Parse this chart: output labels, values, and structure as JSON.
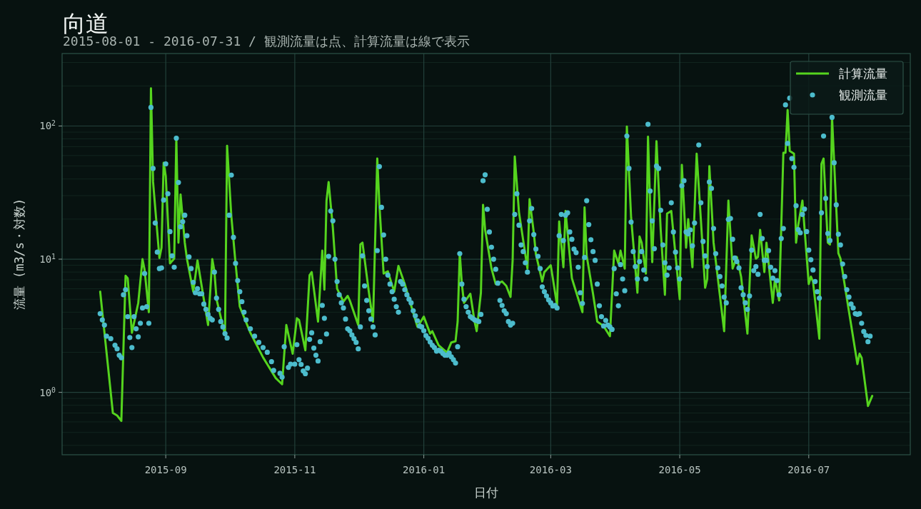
{
  "chart_data": {
    "type": "line",
    "title": "向道",
    "subtitle": "2015-08-01 - 2016-07-31 / 観測流量は点、計算流量は線で表示",
    "xlabel": "日付",
    "ylabel": "流量 (m3/s・対数)",
    "log": "y",
    "grid": true,
    "legend": "top right",
    "xlim": [
      "2015-07-14",
      "2016-08-18"
    ],
    "ylim": [
      0.34,
      350
    ],
    "xticks": [
      "2015-09",
      "2015-11",
      "2016-01",
      "2016-03",
      "2016-05",
      "2016-07"
    ],
    "yticks": [
      {
        "value": 1,
        "label": "10$^{0}$"
      },
      {
        "value": 10,
        "label": "10$^{1}$"
      },
      {
        "value": 100,
        "label": "10$^{2}$"
      }
    ],
    "series": [
      {
        "name": "計算流量",
        "type": "line",
        "color": "#55d41e",
        "line_style": "solid",
        "marker": "none",
        "x": [
          "2015-08-01",
          "2015-08-07",
          "2015-08-09",
          "2015-08-11",
          "2015-08-13",
          "2015-08-14",
          "2015-08-16",
          "2015-08-19",
          "2015-08-21",
          "2015-08-22",
          "2015-08-24",
          "2015-08-25",
          "2015-08-26",
          "2015-08-28",
          "2015-08-29",
          "2015-08-30",
          "2015-08-31",
          "2015-09-01",
          "2015-09-03",
          "2015-09-05",
          "2015-09-06",
          "2015-09-07",
          "2015-09-08",
          "2015-09-10",
          "2015-09-11",
          "2015-09-14",
          "2015-09-16",
          "2015-09-19",
          "2015-09-21",
          "2015-09-23",
          "2015-09-24",
          "2015-09-25",
          "2015-09-29",
          "2015-09-30",
          "2015-10-02",
          "2015-10-04",
          "2015-10-06",
          "2015-10-11",
          "2015-10-17",
          "2015-10-23",
          "2015-10-26",
          "2015-10-28",
          "2015-10-31",
          "2015-11-02",
          "2015-11-03",
          "2015-11-06",
          "2015-11-08",
          "2015-11-09",
          "2015-11-12",
          "2015-11-14",
          "2015-11-15",
          "2015-11-16",
          "2015-11-17",
          "2015-11-19",
          "2015-11-21",
          "2015-11-24",
          "2015-11-26",
          "2015-11-27",
          "2015-12-01",
          "2015-12-02",
          "2015-12-03",
          "2015-12-06",
          "2015-12-08",
          "2015-12-10",
          "2015-12-11",
          "2015-12-13",
          "2015-12-15",
          "2015-12-16",
          "2015-12-18",
          "2015-12-20",
          "2015-12-23",
          "2015-12-29",
          "2016-01-01",
          "2016-01-04",
          "2016-01-05",
          "2016-01-08",
          "2016-01-12",
          "2016-01-14",
          "2016-01-16",
          "2016-01-17",
          "2016-01-18",
          "2016-01-19",
          "2016-01-20",
          "2016-01-23",
          "2016-01-25",
          "2016-01-26",
          "2016-01-28",
          "2016-01-29",
          "2016-01-30",
          "2016-02-02",
          "2016-02-04",
          "2016-02-07",
          "2016-02-09",
          "2016-02-11",
          "2016-02-12",
          "2016-02-13",
          "2016-02-15",
          "2016-02-19",
          "2016-02-20",
          "2016-02-22",
          "2016-02-23",
          "2016-02-26",
          "2016-02-27",
          "2016-03-01",
          "2016-03-02",
          "2016-03-04",
          "2016-03-05",
          "2016-03-07",
          "2016-03-08",
          "2016-03-11",
          "2016-03-12",
          "2016-03-16",
          "2016-03-17",
          "2016-03-18",
          "2016-03-21",
          "2016-03-23",
          "2016-03-26",
          "2016-03-29",
          "2016-03-31",
          "2016-04-02",
          "2016-04-03",
          "2016-04-05",
          "2016-04-06",
          "2016-04-08",
          "2016-04-11",
          "2016-04-12",
          "2016-04-13",
          "2016-04-15",
          "2016-04-16",
          "2016-04-17",
          "2016-04-18",
          "2016-04-20",
          "2016-04-22",
          "2016-04-24",
          "2016-04-25",
          "2016-04-27",
          "2016-05-01",
          "2016-05-02",
          "2016-05-04",
          "2016-05-05",
          "2016-05-07",
          "2016-05-09",
          "2016-05-11",
          "2016-05-13",
          "2016-05-14",
          "2016-05-15",
          "2016-05-17",
          "2016-05-22",
          "2016-05-24",
          "2016-05-26",
          "2016-05-28",
          "2016-05-30",
          "2016-06-02",
          "2016-06-04",
          "2016-06-06",
          "2016-06-07",
          "2016-06-08",
          "2016-06-10",
          "2016-06-11",
          "2016-06-14",
          "2016-06-15",
          "2016-06-17",
          "2016-06-19",
          "2016-06-20",
          "2016-06-21",
          "2016-06-22",
          "2016-06-24",
          "2016-06-25",
          "2016-06-26",
          "2016-06-28",
          "2016-07-01",
          "2016-07-02",
          "2016-07-03",
          "2016-07-06",
          "2016-07-07",
          "2016-07-08",
          "2016-07-10",
          "2016-07-11",
          "2016-07-12",
          "2016-07-15",
          "2016-07-16",
          "2016-07-24",
          "2016-07-25",
          "2016-07-26",
          "2016-07-29",
          "2016-07-31"
        ],
        "values": [
          5.7,
          0.7,
          0.67,
          0.61,
          7.5,
          7.2,
          2.8,
          4.7,
          10,
          8.3,
          4.0,
          192,
          38,
          15.8,
          10.2,
          12.2,
          53,
          42,
          9.3,
          10.1,
          81,
          13.3,
          30.6,
          13.3,
          10.1,
          5.7,
          9.8,
          5.0,
          3.2,
          10,
          8.1,
          5.0,
          2.7,
          71,
          21,
          9.3,
          4.4,
          2.8,
          1.83,
          1.28,
          1.15,
          3.2,
          1.95,
          3.6,
          3.5,
          2.07,
          7.6,
          8.0,
          3.4,
          11.6,
          5.9,
          27.5,
          38,
          17.2,
          6.0,
          4.8,
          5.3,
          4.9,
          3.2,
          12.9,
          13.3,
          5.7,
          3.4,
          57,
          25.6,
          7.8,
          8.1,
          7.2,
          5.7,
          8.9,
          6.5,
          3.1,
          3.7,
          2.76,
          2.88,
          2.26,
          1.99,
          2.37,
          2.42,
          3.4,
          11.1,
          6.5,
          4.7,
          5.5,
          3.4,
          2.88,
          5.6,
          25.6,
          16.6,
          8.5,
          6.5,
          6.8,
          6.3,
          5.2,
          9.8,
          59,
          22.5,
          8.5,
          28.2,
          15.8,
          10.9,
          6.8,
          8.0,
          9.0,
          7.2,
          4.5,
          19.2,
          8.7,
          23,
          7.2,
          6.4,
          4.0,
          24.5,
          10.6,
          5.5,
          3.4,
          3.15,
          2.64,
          11.6,
          9.3,
          11.6,
          8.5,
          99,
          20.6,
          5.6,
          14.8,
          13.3,
          7.8,
          83,
          25.6,
          9.5,
          77,
          16.6,
          5.4,
          22,
          23,
          5.0,
          51,
          12.2,
          20,
          8.7,
          62,
          19.7,
          6.1,
          7.1,
          50,
          13.3,
          2.88,
          27.5,
          8.5,
          10.4,
          7.4,
          2.76,
          15.1,
          10.1,
          10.4,
          16.6,
          8.0,
          13.3,
          4.7,
          7.1,
          4.9,
          63,
          63,
          132,
          65,
          62,
          13.3,
          18.0,
          27.5,
          6.5,
          7.4,
          6.8,
          2.53,
          52,
          57,
          13.3,
          12.9,
          117,
          11.1,
          10.1,
          1.63,
          1.95,
          1.82,
          0.79,
          0.94
        ]
      },
      {
        "name": "観測流量",
        "type": "scatter",
        "color": "#4cbccc",
        "marker": "circle",
        "x": [
          "2015-08-01",
          "2015-08-02",
          "2015-08-03",
          "2015-08-04",
          "2015-08-06",
          "2015-08-08",
          "2015-08-09",
          "2015-08-10",
          "2015-08-11",
          "2015-08-12",
          "2015-08-13",
          "2015-08-14",
          "2015-08-15",
          "2015-08-16",
          "2015-08-17",
          "2015-08-18",
          "2015-08-19",
          "2015-08-20",
          "2015-08-21",
          "2015-08-22",
          "2015-08-23",
          "2015-08-24",
          "2015-08-25",
          "2015-08-26",
          "2015-08-27",
          "2015-08-28",
          "2015-08-29",
          "2015-08-30",
          "2015-08-31",
          "2015-09-01",
          "2015-09-02",
          "2015-09-03",
          "2015-09-04",
          "2015-09-05",
          "2015-09-06",
          "2015-09-07",
          "2015-09-08",
          "2015-09-09",
          "2015-09-10",
          "2015-09-11",
          "2015-09-12",
          "2015-09-13",
          "2015-09-14",
          "2015-09-15",
          "2015-09-16",
          "2015-09-17",
          "2015-09-18",
          "2015-09-19",
          "2015-09-20",
          "2015-09-21",
          "2015-09-22",
          "2015-09-23",
          "2015-09-24",
          "2015-09-25",
          "2015-09-26",
          "2015-09-27",
          "2015-09-28",
          "2015-09-29",
          "2015-09-30",
          "2015-10-01",
          "2015-10-02",
          "2015-10-03",
          "2015-10-04",
          "2015-10-05",
          "2015-10-06",
          "2015-10-07",
          "2015-10-08",
          "2015-10-09",
          "2015-10-11",
          "2015-10-13",
          "2015-10-15",
          "2015-10-17",
          "2015-10-19",
          "2015-10-21",
          "2015-10-22",
          "2015-10-25",
          "2015-10-26",
          "2015-10-27",
          "2015-10-29",
          "2015-10-30",
          "2015-11-01",
          "2015-11-02",
          "2015-11-03",
          "2015-11-04",
          "2015-11-05",
          "2015-11-06",
          "2015-11-07",
          "2015-11-08",
          "2015-11-09",
          "2015-11-10",
          "2015-11-11",
          "2015-11-12",
          "2015-11-13",
          "2015-11-14",
          "2015-11-15",
          "2015-11-16",
          "2015-11-17",
          "2015-11-18",
          "2015-11-19",
          "2015-11-20",
          "2015-11-21",
          "2015-11-22",
          "2015-11-23",
          "2015-11-24",
          "2015-11-25",
          "2015-11-26",
          "2015-11-27",
          "2015-11-28",
          "2015-11-29",
          "2015-11-30",
          "2015-12-01",
          "2015-12-02",
          "2015-12-03",
          "2015-12-04",
          "2015-12-05",
          "2015-12-06",
          "2015-12-07",
          "2015-12-08",
          "2015-12-09",
          "2015-12-10",
          "2015-12-11",
          "2015-12-12",
          "2015-12-13",
          "2015-12-14",
          "2015-12-15",
          "2015-12-16",
          "2015-12-17",
          "2015-12-18",
          "2015-12-19",
          "2015-12-20",
          "2015-12-21",
          "2015-12-22",
          "2015-12-23",
          "2015-12-24",
          "2015-12-25",
          "2015-12-26",
          "2015-12-27",
          "2015-12-28",
          "2015-12-29",
          "2015-12-30",
          "2015-12-31",
          "2016-01-01",
          "2016-01-02",
          "2016-01-03",
          "2016-01-04",
          "2016-01-05",
          "2016-01-06",
          "2016-01-07",
          "2016-01-08",
          "2016-01-09",
          "2016-01-10",
          "2016-01-11",
          "2016-01-12",
          "2016-01-13",
          "2016-01-14",
          "2016-01-15",
          "2016-01-16",
          "2016-01-17",
          "2016-01-18",
          "2016-01-19",
          "2016-01-20",
          "2016-01-21",
          "2016-01-22",
          "2016-01-23",
          "2016-01-24",
          "2016-01-25",
          "2016-01-26",
          "2016-01-27",
          "2016-01-28",
          "2016-01-29",
          "2016-01-30",
          "2016-01-31",
          "2016-02-01",
          "2016-02-02",
          "2016-02-03",
          "2016-02-04",
          "2016-02-05",
          "2016-02-06",
          "2016-02-07",
          "2016-02-08",
          "2016-02-09",
          "2016-02-10",
          "2016-02-11",
          "2016-02-12",
          "2016-02-13",
          "2016-02-14",
          "2016-02-15",
          "2016-02-16",
          "2016-02-17",
          "2016-02-18",
          "2016-02-19",
          "2016-02-20",
          "2016-02-21",
          "2016-02-22",
          "2016-02-23",
          "2016-02-24",
          "2016-02-25",
          "2016-02-26",
          "2016-02-27",
          "2016-02-28",
          "2016-02-29",
          "2016-03-01",
          "2016-03-02",
          "2016-03-03",
          "2016-03-04",
          "2016-03-05",
          "2016-03-06",
          "2016-03-07",
          "2016-03-08",
          "2016-03-09",
          "2016-03-10",
          "2016-03-11",
          "2016-03-12",
          "2016-03-13",
          "2016-03-14",
          "2016-03-15",
          "2016-03-16",
          "2016-03-17",
          "2016-03-18",
          "2016-03-19",
          "2016-03-20",
          "2016-03-21",
          "2016-03-22",
          "2016-03-23",
          "2016-03-24",
          "2016-03-25",
          "2016-03-26",
          "2016-03-27",
          "2016-03-28",
          "2016-03-29",
          "2016-03-30",
          "2016-03-31",
          "2016-04-01",
          "2016-04-02",
          "2016-04-03",
          "2016-04-04",
          "2016-04-05",
          "2016-04-06",
          "2016-04-07",
          "2016-04-08",
          "2016-04-09",
          "2016-04-10",
          "2016-04-11",
          "2016-04-12",
          "2016-04-13",
          "2016-04-14",
          "2016-04-15",
          "2016-04-16",
          "2016-04-17",
          "2016-04-18",
          "2016-04-19",
          "2016-04-20",
          "2016-04-21",
          "2016-04-22",
          "2016-04-23",
          "2016-04-24",
          "2016-04-25",
          "2016-04-26",
          "2016-04-27",
          "2016-04-28",
          "2016-04-29",
          "2016-04-30",
          "2016-05-01",
          "2016-05-02",
          "2016-05-03",
          "2016-05-04",
          "2016-05-05",
          "2016-05-06",
          "2016-05-07",
          "2016-05-08",
          "2016-05-10",
          "2016-05-11",
          "2016-05-12",
          "2016-05-13",
          "2016-05-14",
          "2016-05-15",
          "2016-05-16",
          "2016-05-17",
          "2016-05-18",
          "2016-05-19",
          "2016-05-20",
          "2016-05-21",
          "2016-05-22",
          "2016-05-23",
          "2016-05-24",
          "2016-05-25",
          "2016-05-26",
          "2016-05-27",
          "2016-05-28",
          "2016-05-29",
          "2016-05-30",
          "2016-05-31",
          "2016-06-01",
          "2016-06-02",
          "2016-06-03",
          "2016-06-04",
          "2016-06-05",
          "2016-06-06",
          "2016-06-07",
          "2016-06-08",
          "2016-06-09",
          "2016-06-10",
          "2016-06-11",
          "2016-06-12",
          "2016-06-13",
          "2016-06-14",
          "2016-06-15",
          "2016-06-16",
          "2016-06-17",
          "2016-06-18",
          "2016-06-19",
          "2016-06-20",
          "2016-06-21",
          "2016-06-22",
          "2016-06-23",
          "2016-06-24",
          "2016-06-25",
          "2016-06-26",
          "2016-06-27",
          "2016-06-28",
          "2016-06-29",
          "2016-06-30",
          "2016-07-01",
          "2016-07-02",
          "2016-07-03",
          "2016-07-04",
          "2016-07-05",
          "2016-07-06",
          "2016-07-07",
          "2016-07-08",
          "2016-07-09",
          "2016-07-10",
          "2016-07-11",
          "2016-07-12",
          "2016-07-13",
          "2016-07-14",
          "2016-07-15",
          "2016-07-16",
          "2016-07-17",
          "2016-07-18",
          "2016-07-19",
          "2016-07-20",
          "2016-07-21",
          "2016-07-22",
          "2016-07-23",
          "2016-07-24",
          "2016-07-25",
          "2016-07-26",
          "2016-07-27",
          "2016-07-28",
          "2016-07-29",
          "2016-07-30"
        ],
        "values": [
          3.9,
          3.5,
          3.2,
          2.64,
          2.53,
          2.26,
          2.12,
          1.9,
          1.82,
          5.4,
          5.9,
          3.7,
          2.58,
          2.17,
          3.7,
          3.0,
          2.61,
          3.3,
          4.3,
          7.8,
          4.4,
          3.3,
          138,
          48,
          18.7,
          11.3,
          8.5,
          8.6,
          27.8,
          52,
          31,
          16.1,
          10.6,
          8.7,
          81,
          37.7,
          17.5,
          19.1,
          21.4,
          15,
          10.4,
          8.5,
          6.7,
          5.6,
          6.0,
          5.5,
          5.5,
          4.6,
          4.2,
          3.85,
          3.6,
          3.5,
          8.0,
          5.1,
          4.2,
          3.4,
          3.1,
          2.76,
          2.56,
          21.4,
          42.8,
          14.6,
          9.3,
          6.9,
          5.7,
          4.8,
          4.0,
          3.5,
          3.0,
          2.64,
          2.37,
          2.17,
          2.0,
          1.7,
          1.46,
          1.39,
          1.3,
          2.2,
          1.54,
          1.63,
          1.63,
          2.28,
          1.76,
          1.62,
          1.45,
          1.38,
          1.52,
          2.5,
          2.8,
          2.15,
          1.9,
          1.72,
          2.4,
          4.5,
          3.6,
          2.74,
          10.5,
          23,
          19.4,
          10,
          6.8,
          5.4,
          4.7,
          4.3,
          3.55,
          3.0,
          2.9,
          2.7,
          2.53,
          2.37,
          2.12,
          3.1,
          10.6,
          6.3,
          4.9,
          4.1,
          3.55,
          3.1,
          2.7,
          11.6,
          49.6,
          24.5,
          15.2,
          10,
          7.6,
          6.5,
          5.7,
          5.0,
          4.4,
          4.0,
          6.8,
          6.5,
          5.9,
          5.4,
          5.0,
          4.7,
          4.1,
          3.76,
          3.45,
          3.15,
          3.1,
          2.9,
          2.67,
          2.55,
          2.39,
          2.26,
          2.17,
          2.04,
          2.07,
          2.04,
          1.96,
          1.9,
          1.9,
          1.97,
          1.85,
          1.76,
          1.66,
          2.2,
          11,
          6.5,
          5.0,
          4.4,
          4.0,
          3.7,
          3.6,
          3.5,
          3.45,
          3.4,
          3.85,
          38.8,
          43,
          23.7,
          16,
          12.3,
          10,
          8.4,
          6.6,
          4.9,
          4.5,
          4.1,
          3.9,
          3.4,
          3.2,
          3.3,
          21.7,
          31,
          18,
          12.8,
          11.4,
          9.4,
          8.0,
          19.4,
          24,
          15.3,
          11.9,
          10.5,
          8.5,
          6.2,
          5.7,
          5.3,
          4.95,
          4.7,
          4.45,
          4.5,
          4.3,
          15,
          21.7,
          13.8,
          21.4,
          22.3,
          16,
          14.1,
          11.9,
          11.2,
          8.7,
          5.6,
          4.65,
          10.3,
          27.5,
          18.2,
          14,
          11.4,
          9.8,
          6.5,
          4.47,
          3.7,
          3.15,
          3.47,
          3.2,
          3.1,
          2.97,
          8.5,
          5.5,
          4.47,
          9.1,
          7.1,
          5.8,
          84,
          48,
          19,
          11.4,
          8.8,
          7.1,
          9.6,
          11.4,
          8.3,
          7.1,
          103,
          32.5,
          19.4,
          12,
          50,
          48,
          23.3,
          12.8,
          9.4,
          7.6,
          8.6,
          26.5,
          16,
          11.3,
          8.6,
          7.1,
          35.6,
          38.8,
          16,
          15.5,
          16.6,
          12.6,
          18.7,
          72,
          26.5,
          13.6,
          10.6,
          8.8,
          38,
          34,
          17,
          11,
          8.6,
          7.4,
          6.3,
          5.2,
          4.7,
          19.9,
          20.2,
          14.1,
          10.2,
          9.6,
          8.6,
          6.1,
          5.4,
          4.7,
          4.2,
          5.3,
          11.7,
          8.2,
          8.8,
          7.7,
          21.7,
          14.3,
          9.8,
          9.8,
          11.6,
          8.7,
          7.2,
          8.2,
          6.9,
          5.4,
          14.3,
          17,
          144,
          74,
          162,
          57,
          49,
          25.2,
          16.7,
          15.8,
          21.7,
          23.8,
          16.1,
          11.7,
          9.9,
          8.3,
          6.8,
          5.7,
          5.1,
          22.3,
          84,
          28.6,
          15.6,
          13.8,
          116,
          53,
          25.6,
          15.4,
          12.8,
          9.2,
          7.4,
          5.9,
          5.2,
          4.6,
          4.3,
          3.9,
          3.85,
          3.9,
          3.3,
          2.86,
          2.68,
          2.4,
          2.64
        ]
      }
    ]
  }
}
